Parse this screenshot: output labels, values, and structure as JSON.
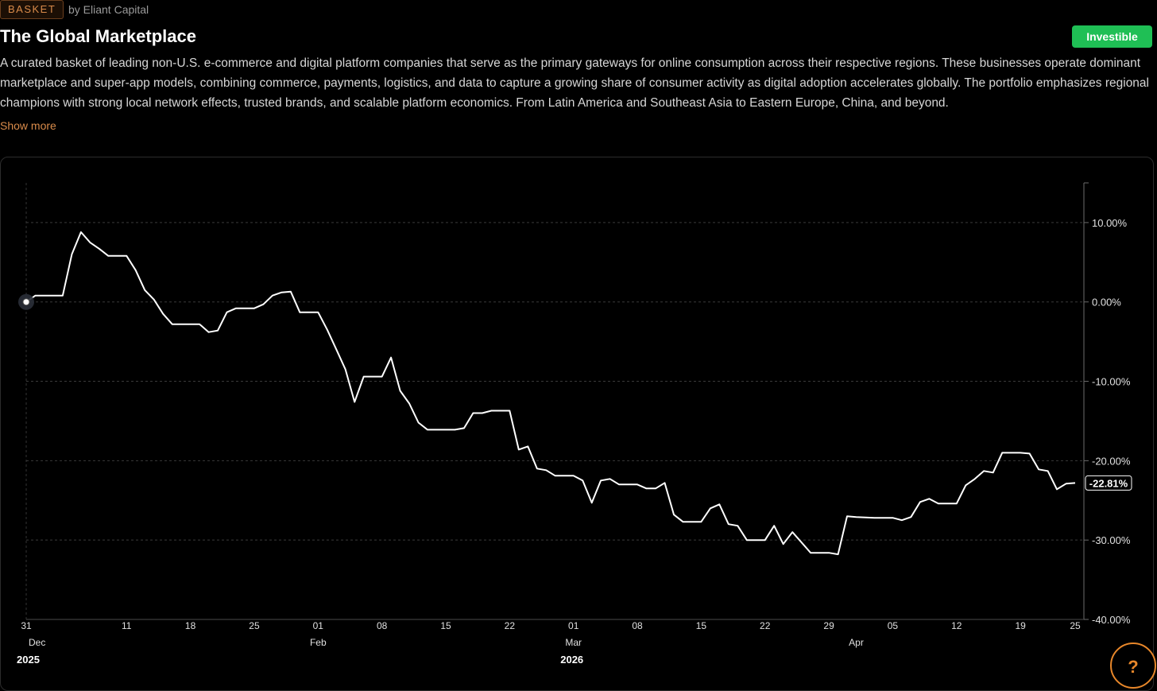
{
  "header": {
    "badge": "BASKET",
    "byline": "by Eliant Capital",
    "title": "The Global Marketplace",
    "status_button": "Investible",
    "description": "A curated basket of leading non-U.S. e-commerce and digital platform companies that serve as the primary gateways for online consumption across their respective regions. These businesses operate dominant marketplace and super-app models, combining commerce, payments, logistics, and data to capture a growing share of consumer activity as digital adoption accelerates globally. The portfolio emphasizes regional champions with strong local network effects, trusted brands, and scalable platform economics. From Latin America and Southeast Asia to Eastern Europe, China, and beyond.",
    "show_more": "Show more"
  },
  "help": {
    "label": "?"
  },
  "colors": {
    "accent": "#d98b4a",
    "investible": "#1fbf55",
    "line": "#ffffff",
    "help": "#e8872a"
  },
  "chart_data": {
    "type": "line",
    "y_unit": "%",
    "ylim": [
      -40,
      15
    ],
    "y_ticks": [
      "10.00%",
      "0.00%",
      "-10.00%",
      "-20.00%",
      "-30.00%",
      "-40.00%"
    ],
    "y_tick_values": [
      10,
      0,
      -10,
      -20,
      -30,
      -40
    ],
    "x_ticks": [
      "31",
      "11",
      "18",
      "25",
      "01",
      "08",
      "15",
      "22",
      "01",
      "08",
      "15",
      "22",
      "29",
      "05",
      "12",
      "19",
      "25"
    ],
    "x_tick_dates": [
      "2025-12-31",
      "2026-01-11",
      "2026-01-18",
      "2026-01-25",
      "2026-02-01",
      "2026-02-08",
      "2026-02-15",
      "2026-02-22",
      "2026-03-01",
      "2026-03-08",
      "2026-03-15",
      "2026-03-22",
      "2026-03-29",
      "2026-04-05",
      "2026-04-12",
      "2026-04-19",
      "2026-04-25"
    ],
    "month_labels": [
      {
        "label": "Dec",
        "date": "2025-12-31"
      },
      {
        "label": "Feb",
        "date": "2026-02-01"
      },
      {
        "label": "Mar",
        "date": "2026-03-01"
      },
      {
        "label": "Apr",
        "date": "2026-04-01"
      }
    ],
    "year_labels": [
      {
        "label": "2025",
        "date": "2025-12-31"
      },
      {
        "label": "2026",
        "date": "2026-03-01"
      }
    ],
    "last_value_label": "-22.81%",
    "grid": true,
    "series": [
      {
        "values": [
          [
            "2025-12-31",
            0.0
          ],
          [
            "2026-01-01",
            0.8
          ],
          [
            "2026-01-03",
            0.8
          ],
          [
            "2026-01-04",
            0.8
          ],
          [
            "2026-01-05",
            6.0
          ],
          [
            "2026-01-06",
            8.8
          ],
          [
            "2026-01-07",
            7.5
          ],
          [
            "2026-01-08",
            6.7
          ],
          [
            "2026-01-09",
            5.8
          ],
          [
            "2026-01-11",
            5.8
          ],
          [
            "2026-01-12",
            4.0
          ],
          [
            "2026-01-13",
            1.5
          ],
          [
            "2026-01-14",
            0.3
          ],
          [
            "2026-01-15",
            -1.5
          ],
          [
            "2026-01-16",
            -2.8
          ],
          [
            "2026-01-18",
            -2.8
          ],
          [
            "2026-01-19",
            -2.8
          ],
          [
            "2026-01-20",
            -3.8
          ],
          [
            "2026-01-21",
            -3.6
          ],
          [
            "2026-01-22",
            -1.3
          ],
          [
            "2026-01-23",
            -0.8
          ],
          [
            "2026-01-25",
            -0.8
          ],
          [
            "2026-01-26",
            -0.3
          ],
          [
            "2026-01-27",
            0.8
          ],
          [
            "2026-01-28",
            1.2
          ],
          [
            "2026-01-29",
            1.3
          ],
          [
            "2026-01-30",
            -1.3
          ],
          [
            "2026-02-01",
            -1.3
          ],
          [
            "2026-02-02",
            -3.5
          ],
          [
            "2026-02-03",
            -6.0
          ],
          [
            "2026-02-04",
            -8.5
          ],
          [
            "2026-02-05",
            -12.6
          ],
          [
            "2026-02-06",
            -9.4
          ],
          [
            "2026-02-08",
            -9.4
          ],
          [
            "2026-02-09",
            -7.0
          ],
          [
            "2026-02-10",
            -11.2
          ],
          [
            "2026-02-11",
            -12.8
          ],
          [
            "2026-02-12",
            -15.2
          ],
          [
            "2026-02-13",
            -16.1
          ],
          [
            "2026-02-15",
            -16.1
          ],
          [
            "2026-02-16",
            -16.1
          ],
          [
            "2026-02-17",
            -15.9
          ],
          [
            "2026-02-18",
            -14.0
          ],
          [
            "2026-02-19",
            -14.0
          ],
          [
            "2026-02-20",
            -13.7
          ],
          [
            "2026-02-22",
            -13.7
          ],
          [
            "2026-02-23",
            -18.6
          ],
          [
            "2026-02-24",
            -18.2
          ],
          [
            "2026-02-25",
            -21.0
          ],
          [
            "2026-02-26",
            -21.2
          ],
          [
            "2026-02-27",
            -21.9
          ],
          [
            "2026-03-01",
            -21.9
          ],
          [
            "2026-03-02",
            -22.5
          ],
          [
            "2026-03-03",
            -25.3
          ],
          [
            "2026-03-04",
            -22.5
          ],
          [
            "2026-03-05",
            -22.3
          ],
          [
            "2026-03-06",
            -23.0
          ],
          [
            "2026-03-08",
            -23.0
          ],
          [
            "2026-03-09",
            -23.5
          ],
          [
            "2026-03-10",
            -23.5
          ],
          [
            "2026-03-11",
            -22.8
          ],
          [
            "2026-03-12",
            -26.8
          ],
          [
            "2026-03-13",
            -27.7
          ],
          [
            "2026-03-15",
            -27.7
          ],
          [
            "2026-03-16",
            -26.0
          ],
          [
            "2026-03-17",
            -25.5
          ],
          [
            "2026-03-18",
            -28.0
          ],
          [
            "2026-03-19",
            -28.2
          ],
          [
            "2026-03-20",
            -30.0
          ],
          [
            "2026-03-22",
            -30.0
          ],
          [
            "2026-03-23",
            -28.2
          ],
          [
            "2026-03-24",
            -30.5
          ],
          [
            "2026-03-25",
            -29.0
          ],
          [
            "2026-03-26",
            -30.3
          ],
          [
            "2026-03-27",
            -31.6
          ],
          [
            "2026-03-29",
            -31.6
          ],
          [
            "2026-03-30",
            -31.8
          ],
          [
            "2026-03-31",
            -27.0
          ],
          [
            "2026-04-01",
            -27.1
          ],
          [
            "2026-04-03",
            -27.2
          ],
          [
            "2026-04-05",
            -27.2
          ],
          [
            "2026-04-06",
            -27.5
          ],
          [
            "2026-04-07",
            -27.1
          ],
          [
            "2026-04-08",
            -25.2
          ],
          [
            "2026-04-09",
            -24.8
          ],
          [
            "2026-04-10",
            -25.4
          ],
          [
            "2026-04-12",
            -25.4
          ],
          [
            "2026-04-13",
            -23.1
          ],
          [
            "2026-04-14",
            -22.3
          ],
          [
            "2026-04-15",
            -21.3
          ],
          [
            "2026-04-16",
            -21.5
          ],
          [
            "2026-04-17",
            -19.0
          ],
          [
            "2026-04-19",
            -19.0
          ],
          [
            "2026-04-20",
            -19.1
          ],
          [
            "2026-04-21",
            -21.1
          ],
          [
            "2026-04-22",
            -21.3
          ],
          [
            "2026-04-23",
            -23.6
          ],
          [
            "2026-04-24",
            -22.9
          ],
          [
            "2026-04-25",
            -22.81
          ]
        ]
      }
    ]
  }
}
